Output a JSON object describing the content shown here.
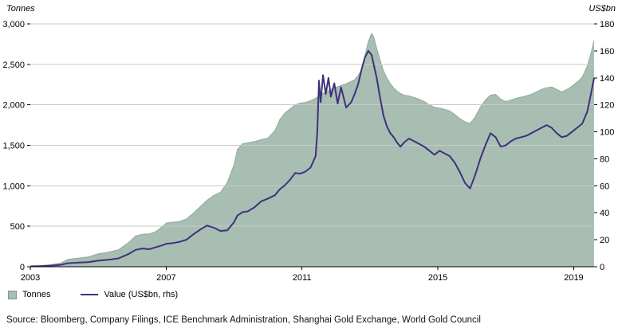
{
  "legend": {
    "tonnes_label": "Tonnes",
    "value_label": "Value (US$bn, rhs)"
  },
  "source": "Source: Bloomberg, Company Filings, ICE Benchmark Administration, Shanghai Gold Exchange, World Gold Council",
  "colors": {
    "area": "#a8beb3",
    "area_edge": "#8fa99d",
    "line": "#40307c",
    "grid": "#c9c9c9",
    "axis": "#000000",
    "text": "#000000"
  },
  "chart_data": {
    "type": "area+line",
    "title": "",
    "x_axis": {
      "min": 2003,
      "max": 2019.6,
      "ticks": [
        2003,
        2007,
        2011,
        2015,
        2019
      ]
    },
    "left_axis": {
      "title": "Tonnes",
      "min": 0,
      "max": 3000,
      "ticks": [
        0,
        500,
        1000,
        1500,
        2000,
        2500,
        3000
      ]
    },
    "right_axis": {
      "title": "US$bn",
      "min": 0,
      "max": 180,
      "ticks": [
        0,
        20,
        40,
        60,
        80,
        100,
        120,
        140,
        160,
        180
      ]
    },
    "x": [
      2003.0,
      2003.3,
      2003.6,
      2003.9,
      2004.1,
      2004.4,
      2004.7,
      2005.0,
      2005.3,
      2005.6,
      2005.9,
      2006.1,
      2006.3,
      2006.5,
      2006.7,
      2006.9,
      2007.0,
      2007.2,
      2007.4,
      2007.6,
      2007.8,
      2008.0,
      2008.2,
      2008.4,
      2008.6,
      2008.8,
      2009.0,
      2009.1,
      2009.25,
      2009.4,
      2009.6,
      2009.8,
      2010.0,
      2010.2,
      2010.35,
      2010.5,
      2010.65,
      2010.8,
      2010.95,
      2011.1,
      2011.25,
      2011.4,
      2011.45,
      2011.5,
      2011.55,
      2011.62,
      2011.7,
      2011.78,
      2011.85,
      2011.95,
      2012.05,
      2012.15,
      2012.3,
      2012.45,
      2012.55,
      2012.65,
      2012.75,
      2012.85,
      2012.95,
      2013.05,
      2013.1,
      2013.2,
      2013.3,
      2013.4,
      2013.5,
      2013.6,
      2013.7,
      2013.8,
      2013.9,
      2014.0,
      2014.15,
      2014.3,
      2014.45,
      2014.6,
      2014.75,
      2014.9,
      2015.05,
      2015.2,
      2015.35,
      2015.5,
      2015.65,
      2015.8,
      2015.95,
      2016.1,
      2016.25,
      2016.4,
      2016.55,
      2016.7,
      2016.85,
      2017.0,
      2017.15,
      2017.3,
      2017.45,
      2017.6,
      2017.75,
      2017.9,
      2018.05,
      2018.2,
      2018.35,
      2018.5,
      2018.65,
      2018.8,
      2018.95,
      2019.1,
      2019.25,
      2019.4,
      2019.5,
      2019.6
    ],
    "series": [
      {
        "name": "Tonnes",
        "type": "area",
        "axis": "left",
        "values": [
          10,
          15,
          25,
          45,
          90,
          105,
          120,
          160,
          180,
          210,
          300,
          380,
          400,
          405,
          435,
          500,
          540,
          550,
          560,
          590,
          660,
          740,
          820,
          880,
          920,
          1040,
          1260,
          1450,
          1520,
          1530,
          1545,
          1570,
          1590,
          1680,
          1820,
          1900,
          1950,
          2000,
          2020,
          2030,
          2050,
          2080,
          2090,
          2120,
          2130,
          2140,
          2160,
          2175,
          2190,
          2210,
          2225,
          2240,
          2260,
          2290,
          2310,
          2360,
          2430,
          2600,
          2780,
          2880,
          2850,
          2700,
          2550,
          2420,
          2330,
          2260,
          2210,
          2170,
          2140,
          2120,
          2110,
          2090,
          2070,
          2040,
          2000,
          1970,
          1960,
          1945,
          1925,
          1880,
          1830,
          1790,
          1770,
          1850,
          1970,
          2060,
          2120,
          2130,
          2070,
          2040,
          2060,
          2080,
          2095,
          2110,
          2130,
          2160,
          2190,
          2210,
          2220,
          2190,
          2160,
          2190,
          2230,
          2280,
          2340,
          2480,
          2620,
          2790
        ]
      },
      {
        "name": "Value (US$bn, rhs)",
        "type": "line",
        "axis": "right",
        "values": [
          0.3,
          0.5,
          0.8,
          1.4,
          2.6,
          3.0,
          3.4,
          4.5,
          5.2,
          6.2,
          9.5,
          12.5,
          13.5,
          13.0,
          14.5,
          16.0,
          17.0,
          17.5,
          18.5,
          20.0,
          24.0,
          27.5,
          30.5,
          29.0,
          26.5,
          27.0,
          33.0,
          38.0,
          40.5,
          41.0,
          44.0,
          48.5,
          50.5,
          53.0,
          57.5,
          60.5,
          64.5,
          69.5,
          69.0,
          70.5,
          73.5,
          82.0,
          100.0,
          138.0,
          122.0,
          142.0,
          128.0,
          140.0,
          126.0,
          136.0,
          121.0,
          133.0,
          118.0,
          122.0,
          128.0,
          135.0,
          146.0,
          155.0,
          160.0,
          157.0,
          151.0,
          140.0,
          125.0,
          112.0,
          104.0,
          99.0,
          96.0,
          92.0,
          89.0,
          92.0,
          95.0,
          93.0,
          91.0,
          89.0,
          86.0,
          83.0,
          86.0,
          84.0,
          82.0,
          77.0,
          70.0,
          62.0,
          58.0,
          68.0,
          80.0,
          90.0,
          99.0,
          96.0,
          89.0,
          90.0,
          93.0,
          95.0,
          96.0,
          97.0,
          99.0,
          101.0,
          103.0,
          105.0,
          103.0,
          99.0,
          96.0,
          97.0,
          100.0,
          103.0,
          106.0,
          115.0,
          127.0,
          140.0
        ]
      }
    ]
  }
}
